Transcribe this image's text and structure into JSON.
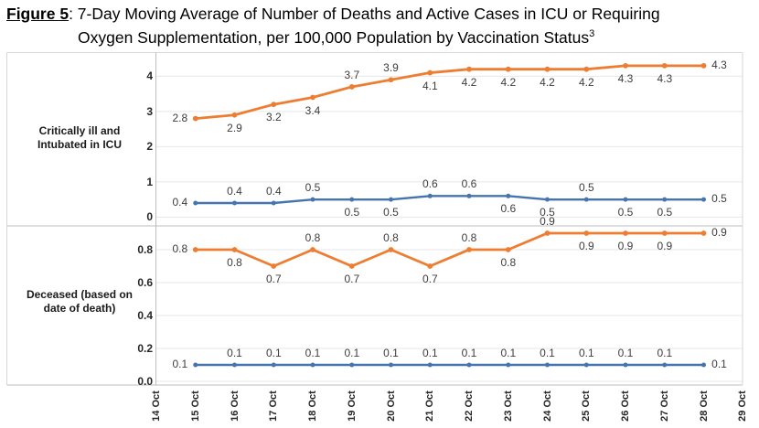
{
  "title": {
    "label": "Figure 5",
    "rest": ": 7-Day Moving Average of Number of Deaths and Active Cases in ICU or Requiring\nOxygen Supplementation, per 100,000 Population by Vaccination Status",
    "superscript": "3"
  },
  "colors": {
    "orange": "#ED7D31",
    "blue": "#4674AE",
    "grid": "#e7e7e7",
    "border": "#d6d6d6",
    "axis": "#bdbdbd"
  },
  "chart_data": {
    "type": "line",
    "title": "Figure 5: 7-Day Moving Average of Number of Deaths and Active Cases in ICU or Requiring Oxygen Supplementation, per 100,000 Population by Vaccination Status",
    "legend": "none",
    "grid": "horizontal",
    "x_categories": [
      "14 Oct",
      "15 Oct",
      "16 Oct",
      "17 Oct",
      "18 Oct",
      "19 Oct",
      "20 Oct",
      "21 Oct",
      "22 Oct",
      "23 Oct",
      "24 Oct",
      "25 Oct",
      "26 Oct",
      "27 Oct",
      "28 Oct",
      "29 Oct"
    ],
    "data_start_category": "15 Oct",
    "panels": [
      {
        "id": "icu",
        "row_label": "Critically ill and\nIntubated in ICU",
        "y_ticks": [
          "0",
          "1",
          "2",
          "3",
          "4"
        ],
        "ylim": [
          0,
          4.7
        ],
        "series": [
          {
            "id": "orange",
            "values": [
              "2.8",
              "2.9",
              "3.2",
              "3.4",
              "3.7",
              "3.9",
              "4.1",
              "4.2",
              "4.2",
              "4.2",
              "4.2",
              "4.3",
              "4.3",
              "4.3"
            ],
            "label_positions": [
              "L",
              "B",
              "B",
              "B",
              "A",
              "A",
              "B",
              "B",
              "B",
              "B",
              "B",
              "B",
              "B",
              "R"
            ]
          },
          {
            "id": "blue",
            "values": [
              "0.4",
              "0.4",
              "0.4",
              "0.5",
              "0.5",
              "0.5",
              "0.6",
              "0.6",
              "0.6",
              "0.5",
              "0.5",
              "0.5",
              "0.5",
              "0.5"
            ],
            "label_positions": [
              "L",
              "A",
              "A",
              "A",
              "B",
              "B",
              "A",
              "A",
              "B",
              "B",
              "A",
              "B",
              "B",
              "R"
            ]
          }
        ]
      },
      {
        "id": "deceased",
        "row_label": "Deceased (based on\ndate of death)",
        "y_ticks": [
          "0.0",
          "0.2",
          "0.4",
          "0.6",
          "0.8"
        ],
        "ylim": [
          0,
          0.95
        ],
        "series": [
          {
            "id": "orange",
            "values": [
              "0.8",
              "0.8",
              "0.7",
              "0.8",
              "0.7",
              "0.8",
              "0.7",
              "0.8",
              "0.8",
              "0.9",
              "0.9",
              "0.9",
              "0.9",
              "0.9"
            ],
            "label_positions": [
              "L",
              "B",
              "B",
              "A",
              "B",
              "A",
              "B",
              "A",
              "B",
              "A",
              "B",
              "B",
              "B",
              "R"
            ]
          },
          {
            "id": "blue",
            "values": [
              "0.1",
              "0.1",
              "0.1",
              "0.1",
              "0.1",
              "0.1",
              "0.1",
              "0.1",
              "0.1",
              "0.1",
              "0.1",
              "0.1",
              "0.1",
              "0.1"
            ],
            "label_positions": [
              "L",
              "A",
              "A",
              "A",
              "A",
              "A",
              "A",
              "A",
              "A",
              "A",
              "A",
              "A",
              "A",
              "R"
            ]
          }
        ]
      }
    ]
  }
}
